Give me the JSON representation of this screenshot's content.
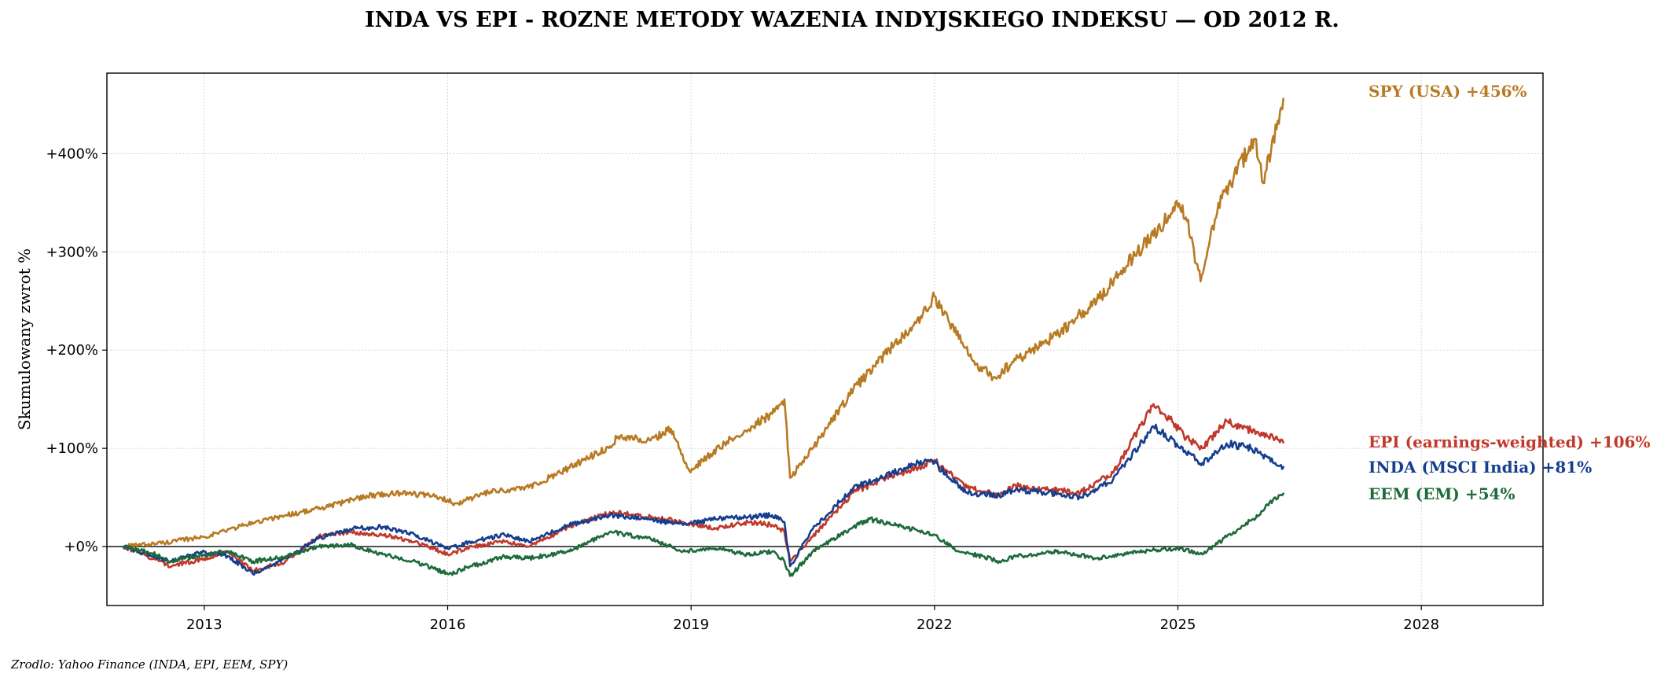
{
  "chart_data": {
    "type": "line",
    "title": "INDA VS EPI - ROZNE METODY WAZENIA INDYJSKIEGO INDEKSU — OD 2012 R.",
    "ylabel": "Skumulowany zwrot %",
    "xlabel": "",
    "source": "Zrodlo: Yahoo Finance (INDA, EPI, EEM, SPY)",
    "xlim": [
      2011.8,
      2029.5
    ],
    "ylim": [
      -60,
      482
    ],
    "x_ticks": [
      2013,
      2016,
      2019,
      2022,
      2025,
      2028
    ],
    "x_tick_labels": [
      "2013",
      "2016",
      "2019",
      "2022",
      "2025",
      "2028"
    ],
    "y_ticks": [
      0,
      100,
      200,
      300,
      400
    ],
    "y_tick_labels": [
      "+0%",
      "+100%",
      "+200%",
      "+300%",
      "+400%"
    ],
    "grid": true,
    "zero_line": true,
    "series": [
      {
        "name": "SPY (USA)",
        "end_label": "SPY (USA)  +456%",
        "color": "#b87a22",
        "x": [
          2012.0,
          2012.5,
          2013.0,
          2013.5,
          2014.0,
          2014.5,
          2015.0,
          2015.5,
          2015.9,
          2016.1,
          2016.5,
          2017.0,
          2017.5,
          2018.0,
          2018.1,
          2018.5,
          2018.75,
          2018.98,
          2019.5,
          2020.0,
          2020.15,
          2020.22,
          2020.5,
          2021.0,
          2021.5,
          2021.9,
          2022.0,
          2022.5,
          2022.75,
          2023.0,
          2023.5,
          2024.0,
          2024.5,
          2025.0,
          2025.1,
          2025.28,
          2025.5,
          2025.95,
          2026.05,
          2026.3
        ],
        "values": [
          0,
          4,
          10,
          22,
          32,
          40,
          52,
          55,
          50,
          44,
          55,
          60,
          80,
          102,
          112,
          108,
          120,
          77,
          110,
          135,
          150,
          70,
          100,
          160,
          205,
          240,
          255,
          185,
          172,
          190,
          215,
          250,
          300,
          346,
          335,
          270,
          350,
          415,
          370,
          456
        ]
      },
      {
        "name": "EPI (earnings-weighted)",
        "end_label": "EPI (earnings-weighted)  +106%",
        "color": "#c0392b",
        "x": [
          2012.0,
          2012.3,
          2012.6,
          2013.0,
          2013.3,
          2013.6,
          2014.0,
          2014.4,
          2014.8,
          2015.2,
          2015.6,
          2016.0,
          2016.3,
          2016.7,
          2017.0,
          2017.5,
          2018.0,
          2018.5,
          2018.9,
          2019.3,
          2019.7,
          2020.0,
          2020.15,
          2020.22,
          2020.5,
          2021.0,
          2021.4,
          2021.8,
          2022.0,
          2022.4,
          2022.8,
          2023.0,
          2023.4,
          2023.8,
          2024.2,
          2024.7,
          2024.9,
          2025.1,
          2025.3,
          2025.6,
          2025.9,
          2026.2,
          2026.3
        ],
        "values": [
          0,
          -10,
          -20,
          -12,
          -5,
          -25,
          -15,
          10,
          15,
          12,
          5,
          -8,
          0,
          5,
          0,
          20,
          35,
          30,
          25,
          18,
          25,
          22,
          15,
          -15,
          10,
          55,
          70,
          80,
          88,
          60,
          52,
          62,
          58,
          55,
          75,
          145,
          130,
          110,
          100,
          128,
          118,
          110,
          106
        ]
      },
      {
        "name": "INDA (MSCI India)",
        "end_label": "INDA (MSCI India)  +81%",
        "color": "#153e8f",
        "x": [
          2012.0,
          2012.3,
          2012.6,
          2013.0,
          2013.3,
          2013.6,
          2014.0,
          2014.4,
          2014.8,
          2015.2,
          2015.6,
          2016.0,
          2016.3,
          2016.7,
          2017.0,
          2017.5,
          2018.0,
          2018.5,
          2018.9,
          2019.3,
          2019.7,
          2020.0,
          2020.15,
          2020.22,
          2020.5,
          2021.0,
          2021.4,
          2021.8,
          2022.0,
          2022.4,
          2022.8,
          2023.0,
          2023.4,
          2023.8,
          2024.2,
          2024.7,
          2024.9,
          2025.1,
          2025.3,
          2025.6,
          2025.9,
          2026.2,
          2026.3
        ],
        "values": [
          0,
          -8,
          -15,
          -5,
          -10,
          -28,
          -12,
          8,
          18,
          20,
          12,
          -2,
          5,
          12,
          5,
          22,
          32,
          28,
          22,
          28,
          30,
          32,
          25,
          -20,
          18,
          60,
          72,
          86,
          85,
          55,
          52,
          58,
          55,
          50,
          68,
          122,
          110,
          95,
          85,
          105,
          100,
          85,
          81
        ]
      },
      {
        "name": "EEM (EM)",
        "end_label": "EEM (EM)  +54%",
        "color": "#1e6b3a",
        "x": [
          2012.0,
          2012.3,
          2012.6,
          2013.0,
          2013.3,
          2013.6,
          2014.0,
          2014.4,
          2014.8,
          2015.2,
          2015.6,
          2016.0,
          2016.3,
          2016.7,
          2017.0,
          2017.5,
          2018.0,
          2018.5,
          2018.9,
          2019.3,
          2019.7,
          2020.0,
          2020.15,
          2020.22,
          2020.5,
          2021.0,
          2021.2,
          2021.6,
          2022.0,
          2022.3,
          2022.6,
          2022.8,
          2023.0,
          2023.5,
          2024.0,
          2024.5,
          2025.0,
          2025.3,
          2025.6,
          2026.0,
          2026.2,
          2026.3
        ],
        "values": [
          0,
          -5,
          -15,
          -8,
          -5,
          -15,
          -10,
          0,
          2,
          -8,
          -15,
          -28,
          -20,
          -10,
          -12,
          -5,
          15,
          8,
          -5,
          -2,
          -8,
          -5,
          -15,
          -30,
          -5,
          20,
          28,
          20,
          12,
          -5,
          -10,
          -15,
          -10,
          -5,
          -12,
          -5,
          -2,
          -8,
          10,
          32,
          50,
          54
        ]
      }
    ]
  }
}
